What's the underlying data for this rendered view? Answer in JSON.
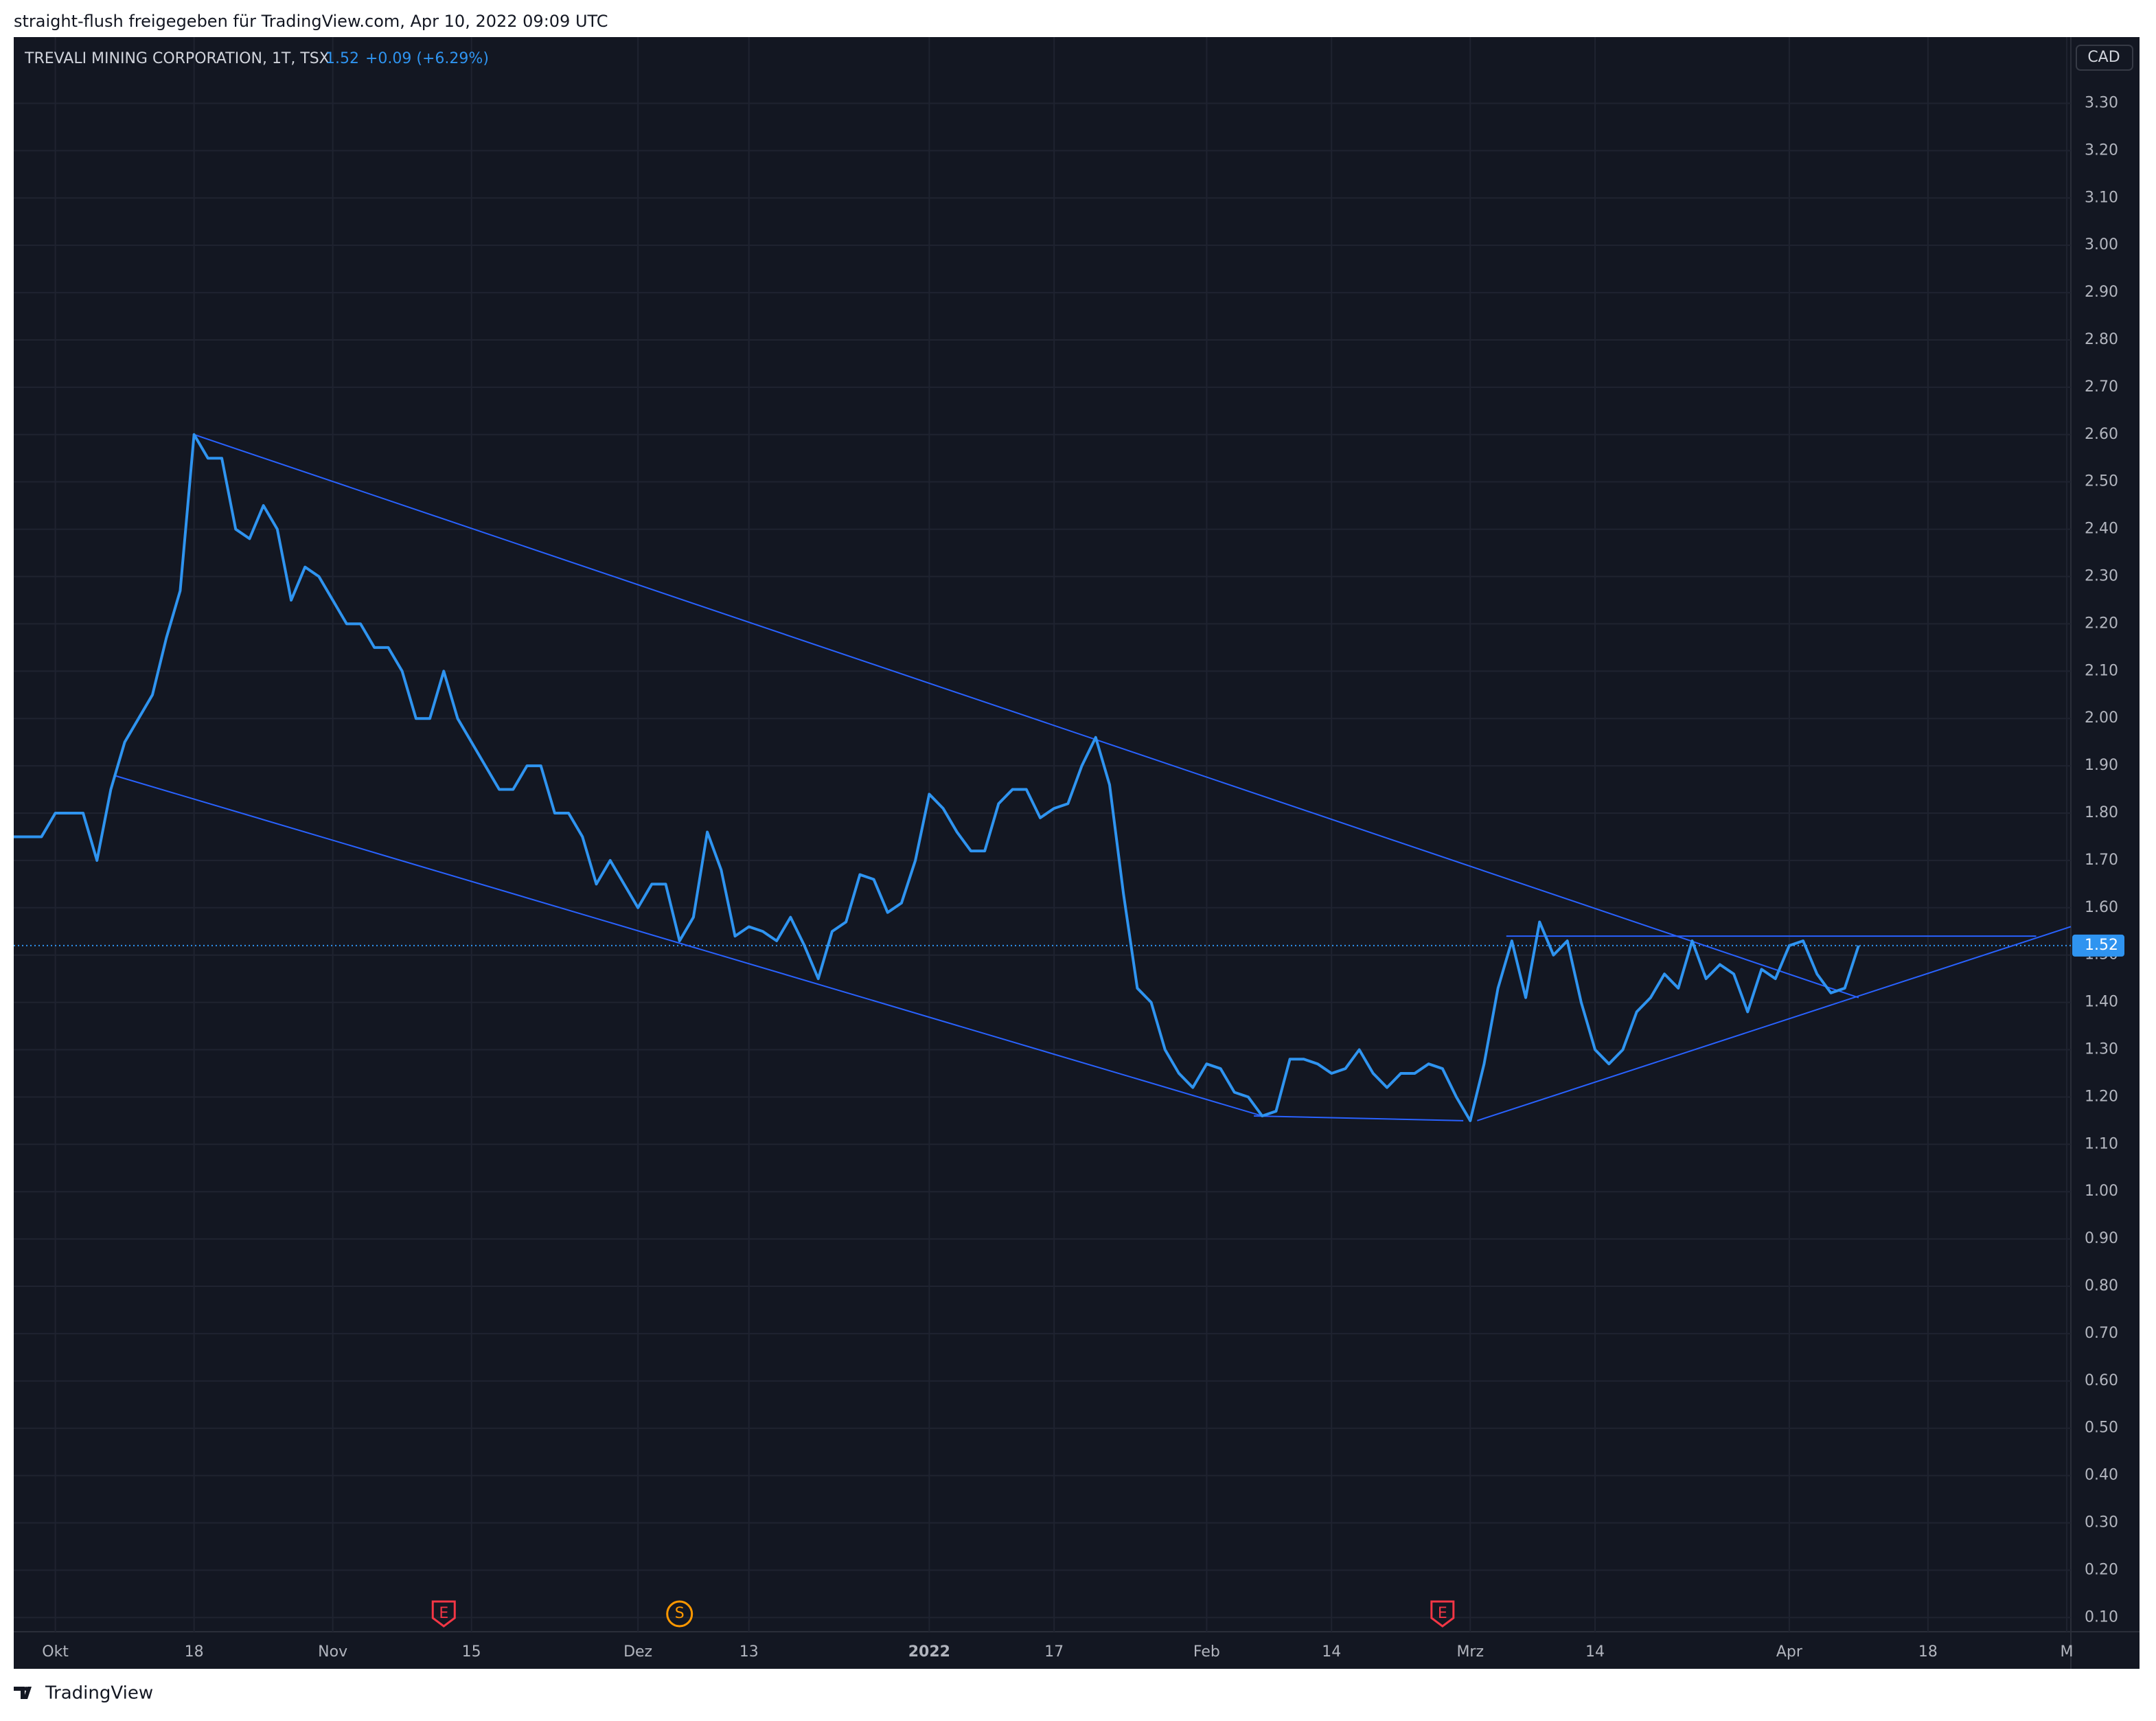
{
  "header": {
    "title": "straight-flush freigegeben für TradingView.com, Apr 10, 2022 09:09 UTC"
  },
  "chart_data": {
    "type": "line",
    "title": "TREVALI MINING CORPORATION, 1T, TSX",
    "last_value": 1.52,
    "change_label": "+0.09 (+6.29%)",
    "currency": "CAD",
    "series": [
      {
        "color": "#2f94f0",
        "values": [
          1.75,
          1.75,
          1.75,
          1.8,
          1.8,
          1.8,
          1.7,
          1.85,
          1.95,
          2.0,
          2.05,
          2.17,
          2.27,
          2.6,
          2.55,
          2.55,
          2.4,
          2.38,
          2.45,
          2.4,
          2.25,
          2.32,
          2.3,
          2.25,
          2.2,
          2.2,
          2.15,
          2.15,
          2.1,
          2.0,
          2.0,
          2.1,
          2.0,
          1.95,
          1.9,
          1.85,
          1.85,
          1.9,
          1.9,
          1.8,
          1.8,
          1.75,
          1.65,
          1.7,
          1.65,
          1.6,
          1.65,
          1.65,
          1.53,
          1.58,
          1.76,
          1.68,
          1.54,
          1.56,
          1.55,
          1.53,
          1.58,
          1.52,
          1.45,
          1.55,
          1.57,
          1.67,
          1.66,
          1.59,
          1.61,
          1.7,
          1.84,
          1.81,
          1.76,
          1.72,
          1.72,
          1.82,
          1.85,
          1.85,
          1.79,
          1.81,
          1.82,
          1.9,
          1.96,
          1.86,
          1.63,
          1.43,
          1.4,
          1.3,
          1.25,
          1.22,
          1.27,
          1.26,
          1.21,
          1.2,
          1.16,
          1.17,
          1.28,
          1.28,
          1.27,
          1.25,
          1.26,
          1.3,
          1.25,
          1.22,
          1.25,
          1.25,
          1.27,
          1.26,
          1.2,
          1.15,
          1.27,
          1.43,
          1.53,
          1.41,
          1.57,
          1.5,
          1.53,
          1.4,
          1.3,
          1.27,
          1.3,
          1.38,
          1.41,
          1.46,
          1.43,
          1.53,
          1.45,
          1.48,
          1.46,
          1.38,
          1.47,
          1.45,
          1.52,
          1.53,
          1.46,
          1.42,
          1.43,
          1.52
        ]
      }
    ],
    "trendlines": [
      {
        "color": "#2962ff",
        "x": [
          13,
          133
        ],
        "y": [
          2.6,
          1.41
        ]
      },
      {
        "color": "#2962ff",
        "x": [
          7.2,
          90
        ],
        "y": [
          1.88,
          1.16
        ]
      },
      {
        "color": "#2962ff",
        "x": [
          89.4,
          104.5
        ],
        "y": [
          1.16,
          1.15
        ]
      },
      {
        "color": "#2962ff",
        "x": [
          105.5,
          148.3
        ],
        "y": [
          1.15,
          1.56
        ]
      },
      {
        "color": "#2962ff",
        "x": [
          107.6,
          145.8
        ],
        "y": [
          1.54,
          1.54
        ]
      }
    ],
    "events": [
      {
        "label": "E",
        "x": 31,
        "color": "#f23645"
      },
      {
        "label": "S",
        "x": 48,
        "color": "#ff9800"
      },
      {
        "label": "E",
        "x": 103,
        "color": "#f23645"
      }
    ],
    "xlim": [
      0,
      148.3
    ],
    "xticks": [
      {
        "value": 3,
        "label": "Okt"
      },
      {
        "value": 13,
        "label": "18"
      },
      {
        "value": 23,
        "label": "Nov"
      },
      {
        "value": 33,
        "label": "15"
      },
      {
        "value": 45,
        "label": "Dez"
      },
      {
        "value": 53,
        "label": "13"
      },
      {
        "value": 66,
        "label": "2022"
      },
      {
        "value": 75,
        "label": "17"
      },
      {
        "value": 86,
        "label": "Feb"
      },
      {
        "value": 95,
        "label": "14"
      },
      {
        "value": 105,
        "label": "Mrz"
      },
      {
        "value": 114,
        "label": "14"
      },
      {
        "value": 128,
        "label": "Apr"
      },
      {
        "value": 138,
        "label": "18"
      },
      {
        "value": 148,
        "label": "M"
      }
    ],
    "ylim": [
      0.07,
      3.44
    ],
    "yticks": [
      {
        "value": 0.1,
        "label": "0.10"
      },
      {
        "value": 0.2,
        "label": "0.20"
      },
      {
        "value": 0.3,
        "label": "0.30"
      },
      {
        "value": 0.4,
        "label": "0.40"
      },
      {
        "value": 0.5,
        "label": "0.50"
      },
      {
        "value": 0.6,
        "label": "0.60"
      },
      {
        "value": 0.7,
        "label": "0.70"
      },
      {
        "value": 0.8,
        "label": "0.80"
      },
      {
        "value": 0.9,
        "label": "0.90"
      },
      {
        "value": 1.0,
        "label": "1.00"
      },
      {
        "value": 1.1,
        "label": "1.10"
      },
      {
        "value": 1.2,
        "label": "1.20"
      },
      {
        "value": 1.3,
        "label": "1.30"
      },
      {
        "value": 1.4,
        "label": "1.40"
      },
      {
        "value": 1.5,
        "label": "1.50"
      },
      {
        "value": 1.6,
        "label": "1.60"
      },
      {
        "value": 1.7,
        "label": "1.70"
      },
      {
        "value": 1.8,
        "label": "1.80"
      },
      {
        "value": 1.9,
        "label": "1.90"
      },
      {
        "value": 2.0,
        "label": "2.00"
      },
      {
        "value": 2.1,
        "label": "2.10"
      },
      {
        "value": 2.2,
        "label": "2.20"
      },
      {
        "value": 2.3,
        "label": "2.30"
      },
      {
        "value": 2.4,
        "label": "2.40"
      },
      {
        "value": 2.5,
        "label": "2.50"
      },
      {
        "value": 2.6,
        "label": "2.60"
      },
      {
        "value": 2.7,
        "label": "2.70"
      },
      {
        "value": 2.8,
        "label": "2.80"
      },
      {
        "value": 2.9,
        "label": "2.90"
      },
      {
        "value": 3.0,
        "label": "3.00"
      },
      {
        "value": 3.1,
        "label": "3.10"
      },
      {
        "value": 3.2,
        "label": "3.20"
      },
      {
        "value": 3.3,
        "label": "3.30"
      }
    ],
    "grid": true
  },
  "footer": {
    "brand": "TradingView"
  }
}
